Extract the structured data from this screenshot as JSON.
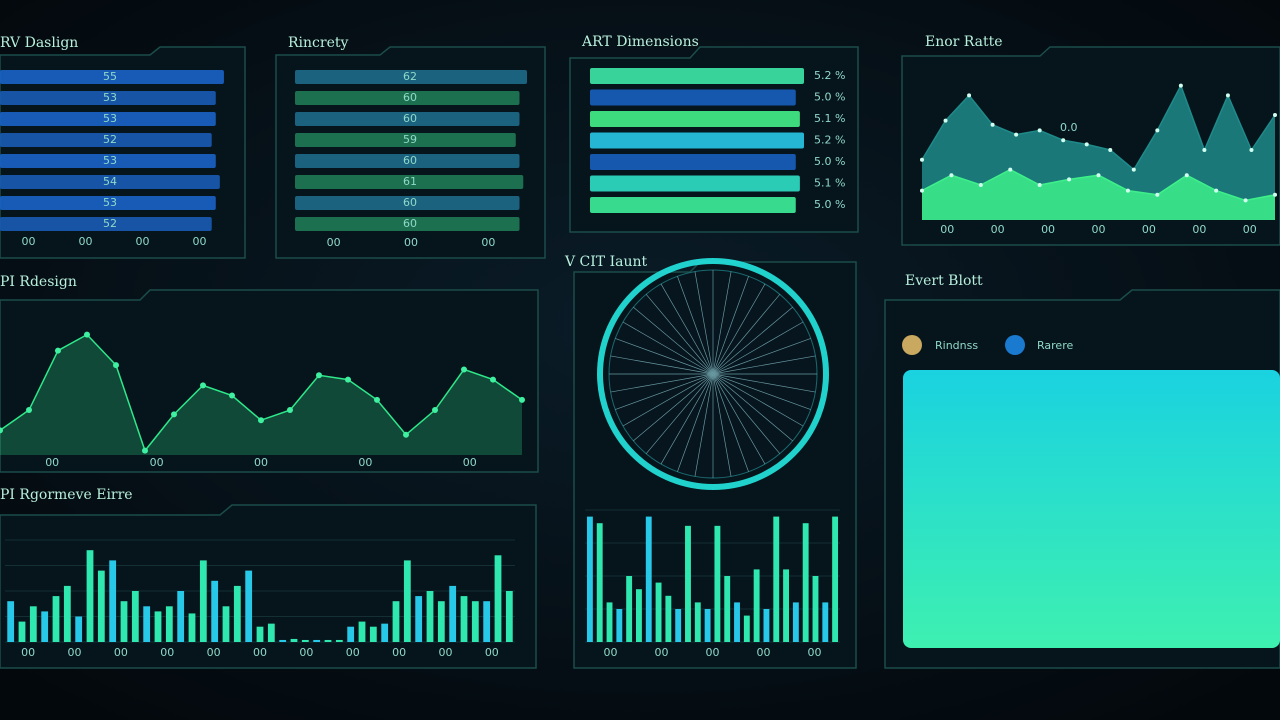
{
  "panels": {
    "design": {
      "title": "RV Daslign",
      "values": [
        55,
        53,
        53,
        52,
        53,
        54,
        53,
        52
      ],
      "xlim": [
        0,
        56
      ],
      "colors": [
        "#1b63c9",
        "#1a5bb5"
      ],
      "ticks": [
        "00",
        "00",
        "00",
        "00"
      ]
    },
    "rincrety": {
      "title": "Rincrety",
      "values": [
        62,
        60,
        60,
        59,
        60,
        61,
        60,
        60
      ],
      "xlim": [
        0,
        62
      ],
      "colors": [
        "#1d6a8a",
        "#1f7a55"
      ],
      "ticks": [
        "00",
        "00",
        "00"
      ]
    },
    "dimensions": {
      "title": "ART Dimensions",
      "values": [
        5.2,
        5.0,
        5.1,
        5.2,
        5.0,
        5.1,
        5.0
      ],
      "value_labels": [
        "5.2 %",
        "5.0 %",
        "5.1 %",
        "5.2 %",
        "5.0 %",
        "5.1 %",
        "5.0 %"
      ],
      "xlim": [
        0,
        5.2
      ],
      "colors": [
        "#3ee8a8",
        "#1a5fc0",
        "#45f08a",
        "#28c8e8",
        "#1a5fc0",
        "#2fe0c8",
        "#3ef09a"
      ]
    },
    "error_rate": {
      "title": "Enor Ratte",
      "annotation": "0.0",
      "ylim": [
        0,
        100
      ],
      "series": [
        {
          "color": "#1f8a8a",
          "values": [
            43,
            71,
            89,
            68,
            61,
            64,
            57,
            54,
            50,
            36,
            64,
            96,
            50,
            89,
            50,
            75
          ]
        },
        {
          "color": "#3ef08a",
          "values": [
            21,
            32,
            25,
            36,
            25,
            29,
            32,
            21,
            18,
            32,
            21,
            14,
            18
          ]
        }
      ],
      "ticks": [
        "00",
        "00",
        "00",
        "00",
        "00",
        "00",
        "00"
      ]
    },
    "pi_design": {
      "title": "PI Rdesign",
      "ylim": [
        0,
        100
      ],
      "color": "#2ee88a",
      "values": [
        17,
        31,
        72,
        83,
        62,
        3,
        28,
        48,
        41,
        24,
        31,
        55,
        52,
        38,
        14,
        31,
        59,
        52,
        38
      ],
      "ticks": [
        "00",
        "00",
        "00",
        "00",
        "00"
      ]
    },
    "progress": {
      "title": "PI Rgormeve Eirre",
      "ylim": [
        0,
        100
      ],
      "values": [
        40,
        20,
        35,
        30,
        45,
        55,
        25,
        90,
        70,
        80,
        40,
        50,
        35,
        30,
        35,
        50,
        28,
        80,
        60,
        35,
        55,
        70,
        15,
        18,
        2,
        3,
        2,
        2,
        2,
        2,
        15,
        20,
        15,
        18,
        40,
        80,
        45,
        50,
        40,
        55,
        45,
        40,
        40,
        85,
        50
      ],
      "ticks": [
        "00",
        "00",
        "00",
        "00",
        "00",
        "00",
        "00",
        "00",
        "00",
        "00",
        "00"
      ]
    },
    "count": {
      "title": "V CIT Iaunt",
      "ylim": [
        0,
        100
      ],
      "values": [
        95,
        90,
        30,
        25,
        50,
        40,
        95,
        45,
        35,
        25,
        88,
        30,
        25,
        88,
        50,
        30,
        20,
        55,
        25,
        95,
        55,
        30,
        90,
        50,
        30,
        95
      ],
      "ticks": [
        "00",
        "00",
        "00",
        "00",
        "00"
      ]
    },
    "event": {
      "title": "Evert Blott",
      "legend": [
        "Rindnss",
        "Rarere"
      ]
    }
  }
}
